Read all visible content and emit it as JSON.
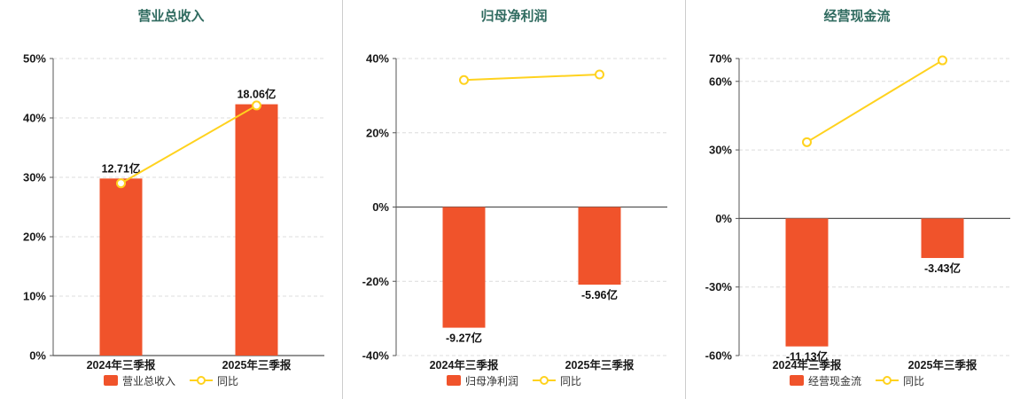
{
  "page": {
    "background": "#ffffff"
  },
  "colors": {
    "bar": "#f0532b",
    "line": "#ffd21e",
    "grid": "#dcdcdc",
    "axis": "#555555",
    "zero_line": "#555555",
    "text": "#1a1a1a",
    "label": "#111111",
    "title": "#306b60"
  },
  "chart_data": [
    {
      "type": "bar",
      "title": "营业总收入",
      "categories": [
        "2024年三季报",
        "2025年三季报"
      ],
      "bar_series": {
        "name": "营业总收入",
        "amount_labels": [
          "12.71亿",
          "18.06亿"
        ],
        "heights_percent_axis": [
          29.8,
          42.3
        ]
      },
      "line_series": {
        "name": "同比",
        "values_percent": [
          29.0,
          42.1
        ]
      },
      "ylim": [
        0,
        50
      ],
      "yticks": [
        0,
        10,
        20,
        30,
        40,
        50
      ],
      "ytick_suffix": "%",
      "grid": "dashed",
      "legend_position": "bottom"
    },
    {
      "type": "bar",
      "title": "归母净利润",
      "categories": [
        "2024年三季报",
        "2025年三季报"
      ],
      "bar_series": {
        "name": "归母净利润",
        "amount_labels": [
          "-9.27亿",
          "-5.96亿"
        ],
        "heights_percent_axis": [
          -32.5,
          -20.9
        ]
      },
      "line_series": {
        "name": "同比",
        "values_percent": [
          34.2,
          35.7
        ]
      },
      "ylim": [
        -40,
        40
      ],
      "yticks": [
        -40,
        -20,
        0,
        20,
        40
      ],
      "ytick_suffix": "%",
      "grid": "dashed",
      "legend_position": "bottom"
    },
    {
      "type": "bar",
      "title": "经营现金流",
      "categories": [
        "2024年三季报",
        "2025年三季报"
      ],
      "bar_series": {
        "name": "经营现金流",
        "amount_labels": [
          "-11.13亿",
          "-3.43亿"
        ],
        "heights_percent_axis": [
          -56.0,
          -17.3
        ]
      },
      "line_series": {
        "name": "同比",
        "values_percent": [
          33.4,
          69.2
        ]
      },
      "ylim": [
        -60,
        70
      ],
      "yticks": [
        -60,
        -30,
        0,
        30,
        60,
        70
      ],
      "ytick_suffix": "%",
      "grid": "dashed",
      "legend_position": "bottom"
    }
  ]
}
